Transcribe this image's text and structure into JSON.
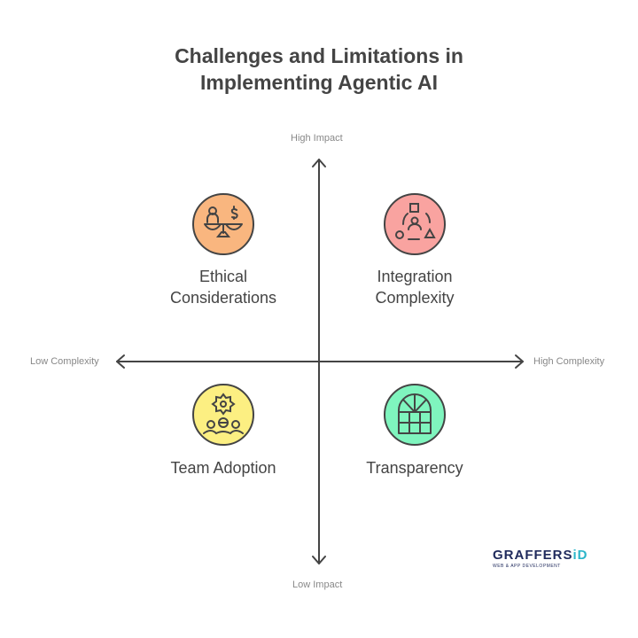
{
  "title_line1": "Challenges and Limitations in",
  "title_line2": "Implementing Agentic AI",
  "axes": {
    "top": "High Impact",
    "bottom": "Low Impact",
    "left": "Low Complexity",
    "right": "High Complexity"
  },
  "quadrants": [
    {
      "line1": "Ethical",
      "line2": "Considerations",
      "icon": "scale-person-dollar-icon",
      "color": "#F9B67F"
    },
    {
      "line1": "Integration",
      "line2": "Complexity",
      "icon": "person-shapes-cycle-icon",
      "color": "#F9A3A0"
    },
    {
      "line1": "Team Adoption",
      "icon": "team-gear-icon",
      "color": "#FCEF82"
    },
    {
      "line1": "Transparency",
      "icon": "window-icon",
      "color": "#7FF5BE"
    }
  ],
  "logo": {
    "name": "GRAFFERS",
    "suffix": "iD",
    "tagline": "WEB & APP DEVELOPMENT"
  }
}
